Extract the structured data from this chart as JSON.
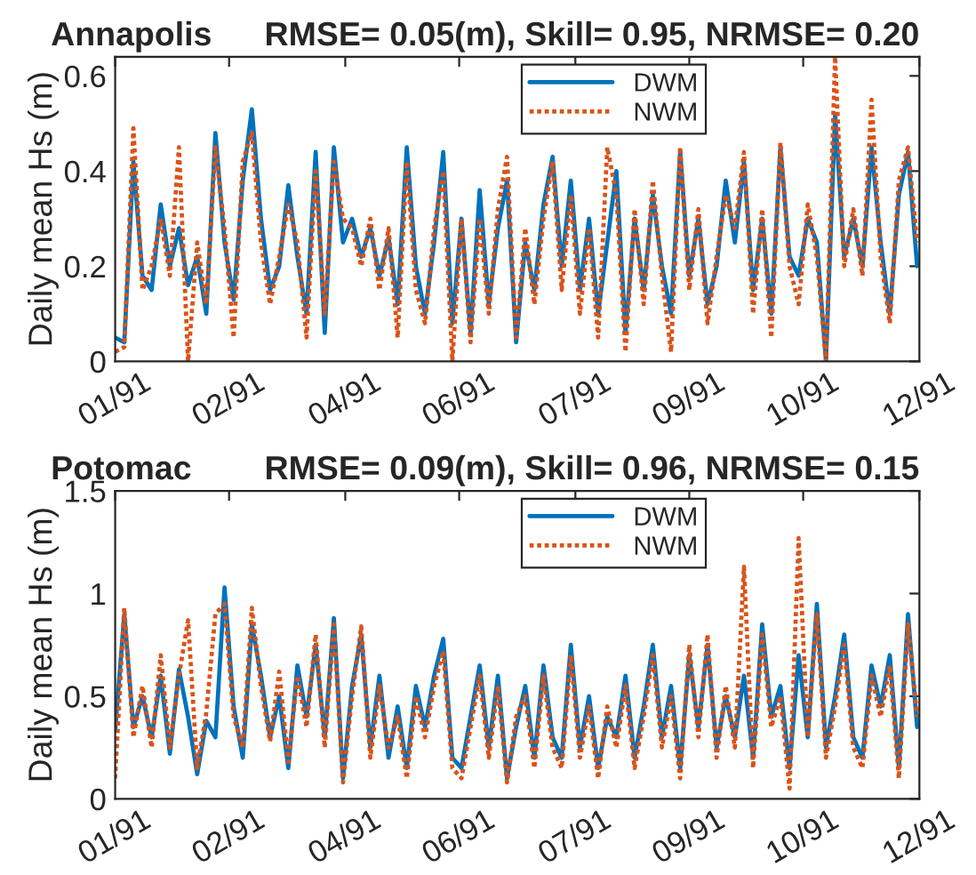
{
  "chart_data": [
    {
      "type": "line",
      "title": "Annapolis",
      "subtitle": "RMSE= 0.05(m), Skill= 0.95, NRMSE= 0.20",
      "ylabel": "Daily mean Hs (m)",
      "x": [
        "1991-01-01",
        "1991-01-05",
        "1991-01-09",
        "1991-01-13",
        "1991-01-17",
        "1991-01-21",
        "1991-01-25",
        "1991-01-29",
        "1991-02-02",
        "1991-02-06",
        "1991-02-10",
        "1991-02-14",
        "1991-02-18",
        "1991-02-22",
        "1991-02-26",
        "1991-03-02",
        "1991-03-06",
        "1991-03-10",
        "1991-03-14",
        "1991-03-18",
        "1991-03-22",
        "1991-03-26",
        "1991-03-30",
        "1991-04-03",
        "1991-04-07",
        "1991-04-11",
        "1991-04-15",
        "1991-04-19",
        "1991-04-23",
        "1991-04-27",
        "1991-05-01",
        "1991-05-05",
        "1991-05-09",
        "1991-05-13",
        "1991-05-17",
        "1991-05-21",
        "1991-05-25",
        "1991-05-29",
        "1991-06-02",
        "1991-06-06",
        "1991-06-10",
        "1991-06-14",
        "1991-06-18",
        "1991-06-22",
        "1991-06-26",
        "1991-06-30",
        "1991-07-04",
        "1991-07-08",
        "1991-07-12",
        "1991-07-16",
        "1991-07-20",
        "1991-07-24",
        "1991-07-28",
        "1991-08-01",
        "1991-08-05",
        "1991-08-09",
        "1991-08-13",
        "1991-08-17",
        "1991-08-21",
        "1991-08-25",
        "1991-08-29",
        "1991-09-02",
        "1991-09-06",
        "1991-09-10",
        "1991-09-14",
        "1991-09-18",
        "1991-09-22",
        "1991-09-26",
        "1991-09-30",
        "1991-10-04",
        "1991-10-08",
        "1991-10-12",
        "1991-10-16",
        "1991-10-20",
        "1991-10-24",
        "1991-10-28",
        "1991-11-01",
        "1991-11-05",
        "1991-11-09",
        "1991-11-13",
        "1991-11-17",
        "1991-11-21",
        "1991-11-25",
        "1991-11-29",
        "1991-12-03",
        "1991-12-07",
        "1991-12-11",
        "1991-12-15",
        "1991-12-19"
      ],
      "series": [
        {
          "name": "DWM",
          "color": "#0072bd",
          "line_style": "solid",
          "values": [
            0.05,
            0.04,
            0.42,
            0.18,
            0.15,
            0.33,
            0.2,
            0.28,
            0.16,
            0.22,
            0.1,
            0.48,
            0.25,
            0.13,
            0.38,
            0.53,
            0.3,
            0.15,
            0.2,
            0.37,
            0.22,
            0.1,
            0.44,
            0.06,
            0.45,
            0.25,
            0.3,
            0.22,
            0.28,
            0.18,
            0.26,
            0.12,
            0.45,
            0.2,
            0.1,
            0.25,
            0.44,
            0.08,
            0.3,
            0.06,
            0.36,
            0.12,
            0.28,
            0.38,
            0.04,
            0.25,
            0.15,
            0.33,
            0.43,
            0.2,
            0.38,
            0.15,
            0.3,
            0.1,
            0.25,
            0.4,
            0.06,
            0.3,
            0.15,
            0.35,
            0.2,
            0.1,
            0.44,
            0.18,
            0.3,
            0.12,
            0.2,
            0.38,
            0.25,
            0.42,
            0.15,
            0.3,
            0.1,
            0.45,
            0.22,
            0.18,
            0.3,
            0.25,
            0.0,
            0.52,
            0.22,
            0.3,
            0.2,
            0.45,
            0.25,
            0.1,
            0.35,
            0.44,
            0.2
          ]
        },
        {
          "name": "NWM",
          "color": "#d95319",
          "line_style": "dotted",
          "values": [
            0.02,
            0.03,
            0.49,
            0.15,
            0.2,
            0.3,
            0.18,
            0.45,
            0.0,
            0.25,
            0.12,
            0.45,
            0.28,
            0.05,
            0.42,
            0.48,
            0.25,
            0.12,
            0.22,
            0.33,
            0.25,
            0.05,
            0.4,
            0.1,
            0.42,
            0.3,
            0.28,
            0.2,
            0.3,
            0.15,
            0.28,
            0.05,
            0.42,
            0.15,
            0.08,
            0.28,
            0.4,
            0.0,
            0.3,
            0.04,
            0.3,
            0.1,
            0.32,
            0.43,
            0.05,
            0.28,
            0.12,
            0.3,
            0.42,
            0.15,
            0.35,
            0.1,
            0.28,
            0.05,
            0.45,
            0.35,
            0.02,
            0.32,
            0.12,
            0.38,
            0.18,
            0.02,
            0.45,
            0.15,
            0.32,
            0.08,
            0.22,
            0.35,
            0.28,
            0.44,
            0.1,
            0.32,
            0.05,
            0.46,
            0.2,
            0.12,
            0.33,
            0.22,
            0.0,
            0.64,
            0.2,
            0.32,
            0.18,
            0.55,
            0.22,
            0.08,
            0.38,
            0.45,
            0.25
          ]
        }
      ],
      "xlim": [
        "1991-01-01",
        "1991-12-20"
      ],
      "xticks": [
        {
          "value": "1991-01-01",
          "label": "01/91"
        },
        {
          "value": "1991-02-20",
          "label": "02/91"
        },
        {
          "value": "1991-04-12",
          "label": "04/91"
        },
        {
          "value": "1991-06-01",
          "label": "06/91"
        },
        {
          "value": "1991-07-22",
          "label": "07/91"
        },
        {
          "value": "1991-09-10",
          "label": "09/91"
        },
        {
          "value": "1991-10-30",
          "label": "10/91"
        },
        {
          "value": "1991-12-20",
          "label": "12/91"
        }
      ],
      "ylim": [
        0,
        0.64
      ],
      "yticks": [
        0,
        0.2,
        0.4,
        0.6
      ],
      "grid": false,
      "legend": "top"
    },
    {
      "type": "line",
      "title": "Potomac",
      "subtitle": "RMSE= 0.09(m), Skill= 0.96, NRMSE= 0.15",
      "ylabel": "Daily mean Hs (m)",
      "x": [
        "1991-01-01",
        "1991-01-05",
        "1991-01-09",
        "1991-01-13",
        "1991-01-17",
        "1991-01-21",
        "1991-01-25",
        "1991-01-29",
        "1991-02-02",
        "1991-02-06",
        "1991-02-10",
        "1991-02-14",
        "1991-02-18",
        "1991-02-22",
        "1991-02-26",
        "1991-03-02",
        "1991-03-06",
        "1991-03-10",
        "1991-03-14",
        "1991-03-18",
        "1991-03-22",
        "1991-03-26",
        "1991-03-30",
        "1991-04-03",
        "1991-04-07",
        "1991-04-11",
        "1991-04-15",
        "1991-04-19",
        "1991-04-23",
        "1991-04-27",
        "1991-05-01",
        "1991-05-05",
        "1991-05-09",
        "1991-05-13",
        "1991-05-17",
        "1991-05-21",
        "1991-05-25",
        "1991-05-29",
        "1991-06-02",
        "1991-06-06",
        "1991-06-10",
        "1991-06-14",
        "1991-06-18",
        "1991-06-22",
        "1991-06-26",
        "1991-06-30",
        "1991-07-04",
        "1991-07-08",
        "1991-07-12",
        "1991-07-16",
        "1991-07-20",
        "1991-07-24",
        "1991-07-28",
        "1991-08-01",
        "1991-08-05",
        "1991-08-09",
        "1991-08-13",
        "1991-08-17",
        "1991-08-21",
        "1991-08-25",
        "1991-08-29",
        "1991-09-02",
        "1991-09-06",
        "1991-09-10",
        "1991-09-14",
        "1991-09-18",
        "1991-09-22",
        "1991-09-26",
        "1991-09-30",
        "1991-10-04",
        "1991-10-08",
        "1991-10-12",
        "1991-10-16",
        "1991-10-20",
        "1991-10-24",
        "1991-10-28",
        "1991-11-01",
        "1991-11-05",
        "1991-11-09",
        "1991-11-13",
        "1991-11-17",
        "1991-11-21",
        "1991-11-25",
        "1991-11-29",
        "1991-12-03",
        "1991-12-07",
        "1991-12-11",
        "1991-12-15",
        "1991-12-19"
      ],
      "series": [
        {
          "name": "DWM",
          "color": "#0072bd",
          "line_style": "solid",
          "values": [
            0.33,
            0.9,
            0.35,
            0.5,
            0.3,
            0.6,
            0.22,
            0.63,
            0.4,
            0.12,
            0.38,
            0.3,
            1.03,
            0.45,
            0.2,
            0.85,
            0.6,
            0.3,
            0.5,
            0.15,
            0.65,
            0.4,
            0.75,
            0.3,
            0.88,
            0.1,
            0.55,
            0.8,
            0.25,
            0.6,
            0.2,
            0.45,
            0.15,
            0.55,
            0.35,
            0.6,
            0.78,
            0.2,
            0.15,
            0.4,
            0.65,
            0.25,
            0.6,
            0.1,
            0.35,
            0.55,
            0.2,
            0.65,
            0.3,
            0.2,
            0.75,
            0.25,
            0.5,
            0.15,
            0.4,
            0.3,
            0.6,
            0.2,
            0.45,
            0.75,
            0.3,
            0.55,
            0.15,
            0.7,
            0.35,
            0.75,
            0.25,
            0.5,
            0.3,
            0.6,
            0.2,
            0.85,
            0.4,
            0.55,
            0.15,
            0.7,
            0.3,
            0.95,
            0.25,
            0.5,
            0.8,
            0.3,
            0.2,
            0.65,
            0.45,
            0.7,
            0.15,
            0.9,
            0.35
          ]
        },
        {
          "name": "NWM",
          "color": "#d95319",
          "line_style": "dotted",
          "values": [
            0.1,
            0.93,
            0.3,
            0.55,
            0.25,
            0.7,
            0.25,
            0.6,
            0.87,
            0.15,
            0.42,
            0.9,
            0.95,
            0.4,
            0.25,
            0.93,
            0.55,
            0.28,
            0.62,
            0.18,
            0.6,
            0.35,
            0.8,
            0.25,
            0.85,
            0.08,
            0.5,
            0.84,
            0.2,
            0.55,
            0.25,
            0.4,
            0.1,
            0.5,
            0.3,
            0.55,
            0.72,
            0.15,
            0.1,
            0.35,
            0.6,
            0.2,
            0.55,
            0.08,
            0.4,
            0.5,
            0.15,
            0.6,
            0.25,
            0.15,
            0.7,
            0.2,
            0.45,
            0.1,
            0.45,
            0.25,
            0.55,
            0.15,
            0.4,
            0.7,
            0.25,
            0.5,
            0.1,
            0.75,
            0.3,
            0.8,
            0.2,
            0.55,
            0.25,
            1.13,
            0.15,
            0.8,
            0.35,
            0.5,
            0.05,
            1.27,
            0.3,
            0.9,
            0.2,
            0.45,
            0.75,
            0.25,
            0.15,
            0.6,
            0.4,
            0.65,
            0.1,
            0.85,
            0.4
          ]
        }
      ],
      "xlim": [
        "1991-01-01",
        "1991-12-20"
      ],
      "xticks": [
        {
          "value": "1991-01-01",
          "label": "01/91"
        },
        {
          "value": "1991-02-20",
          "label": "02/91"
        },
        {
          "value": "1991-04-12",
          "label": "04/91"
        },
        {
          "value": "1991-06-01",
          "label": "06/91"
        },
        {
          "value": "1991-07-22",
          "label": "07/91"
        },
        {
          "value": "1991-09-10",
          "label": "09/91"
        },
        {
          "value": "1991-10-30",
          "label": "10/91"
        },
        {
          "value": "1991-12-20",
          "label": "12/91"
        }
      ],
      "ylim": [
        0,
        1.5
      ],
      "yticks": [
        0,
        0.5,
        1,
        1.5
      ],
      "grid": false,
      "legend": "top"
    }
  ]
}
